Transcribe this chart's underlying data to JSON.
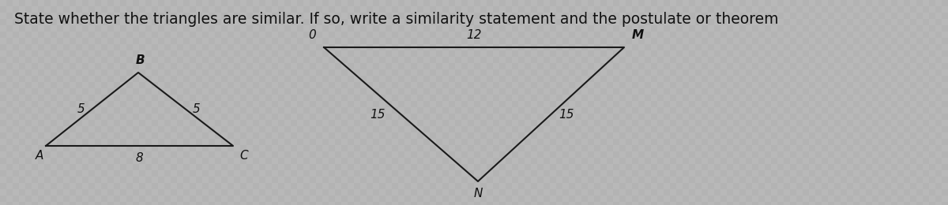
{
  "title": "State whether the triangles are similar. If so, write a similarity statement and the postulate or theorem",
  "title_fontsize": 13.5,
  "bg_color": "#b8b8b8",
  "line_color": "#1a1a1a",
  "text_color": "#111111",
  "tri1": {
    "label_A": "A",
    "label_B": "B",
    "label_C": "C",
    "side_AB": "5",
    "side_BC": "5",
    "side_AC": "8"
  },
  "tri2": {
    "label_O": "0",
    "label_M": "M",
    "label_N": "N",
    "side_ON": "15",
    "side_MN": "15",
    "side_OM": "12"
  }
}
